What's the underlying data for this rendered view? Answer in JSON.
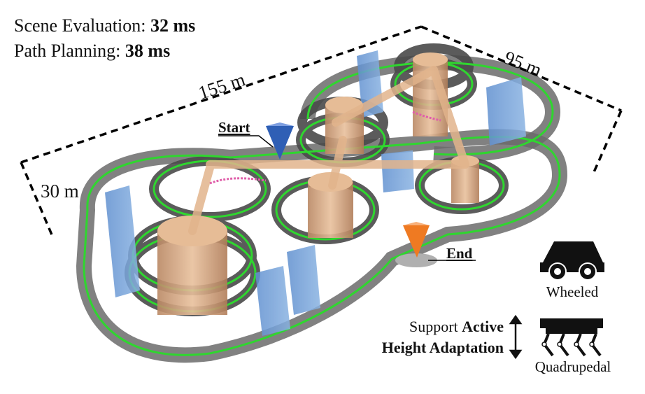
{
  "metrics": {
    "scene_label": "Scene Evaluation: ",
    "scene_value": "32 ms",
    "path_label": "Path Planning: ",
    "path_value": "38 ms"
  },
  "dimensions": {
    "length": "155 m",
    "width": "95 m",
    "height": "30 m"
  },
  "markers": {
    "start": "Start",
    "end": "End"
  },
  "robots": {
    "wheeled": "Wheeled",
    "quadrupedal": "Quadrupedal"
  },
  "support": {
    "prefix": "Support ",
    "bold1": "Active",
    "bold2": "Height Adaptation"
  },
  "colors": {
    "track": "#555555",
    "path": "#22dd22",
    "pillar": "#d9a57a",
    "building": "#6f9ed6",
    "start_marker": "#2f5fb5",
    "end_marker": "#ef7a22"
  }
}
